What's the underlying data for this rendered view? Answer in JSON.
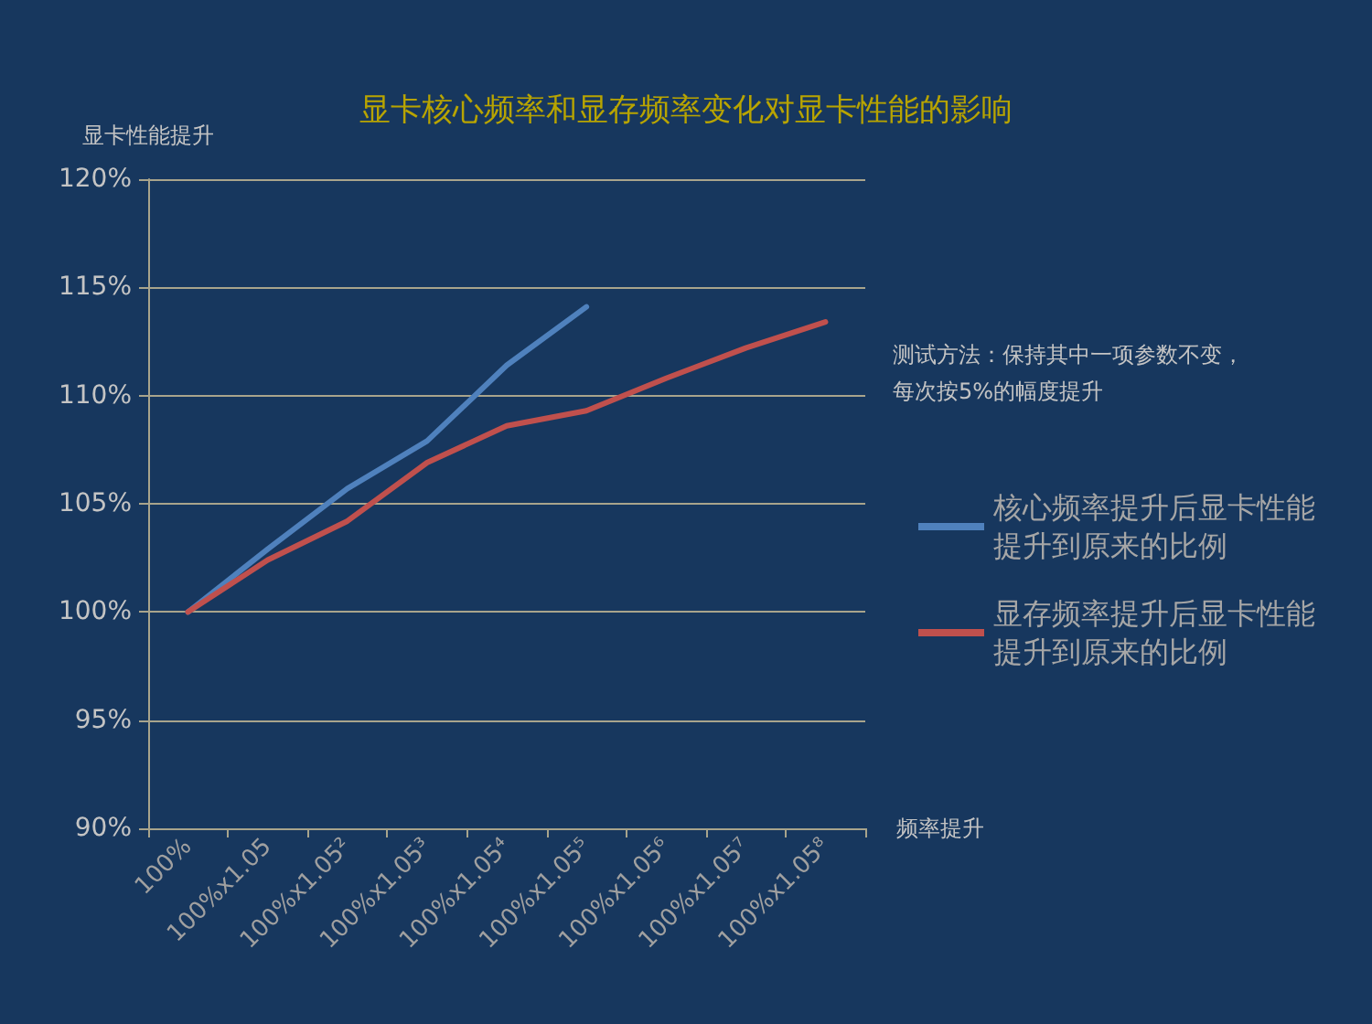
{
  "chart_data": {
    "type": "line",
    "title": "显卡核心频率和显存频率变化对显卡性能的影响",
    "xlabel": "频率提升",
    "ylabel": "显卡性能提升",
    "categories": [
      "100%",
      "100%x1.05",
      "100%x1.05²",
      "100%x1.05³",
      "100%x1.05⁴",
      "100%x1.05⁵",
      "100%x1.05⁶",
      "100%x1.05⁷",
      "100%x1.05⁸"
    ],
    "series": [
      {
        "name": "核心频率提升后显卡性能提升到原来的比例",
        "color": "#4f81bd",
        "values": [
          100,
          102.9,
          105.7,
          107.9,
          111.4,
          114.1,
          null,
          null,
          null
        ]
      },
      {
        "name": "显存频率提升后显卡性能提升到原来的比例",
        "color": "#c0504d",
        "values": [
          100,
          102.4,
          104.2,
          106.9,
          108.6,
          109.3,
          110.8,
          112.2,
          113.4
        ]
      }
    ],
    "ylim": [
      90,
      120
    ],
    "yticks": [
      {
        "value": 90,
        "label": "90%"
      },
      {
        "value": 95,
        "label": "95%"
      },
      {
        "value": 100,
        "label": "100%"
      },
      {
        "value": 105,
        "label": "105%"
      },
      {
        "value": 110,
        "label": "110%"
      },
      {
        "value": 115,
        "label": "115%"
      },
      {
        "value": 120,
        "label": "120%"
      }
    ],
    "grid": "y",
    "legend": "right",
    "marker": "none",
    "line_style": "solid",
    "annotations": [
      "测试方法：保持其中一项参数不变，每次按5%的幅度提升"
    ]
  }
}
